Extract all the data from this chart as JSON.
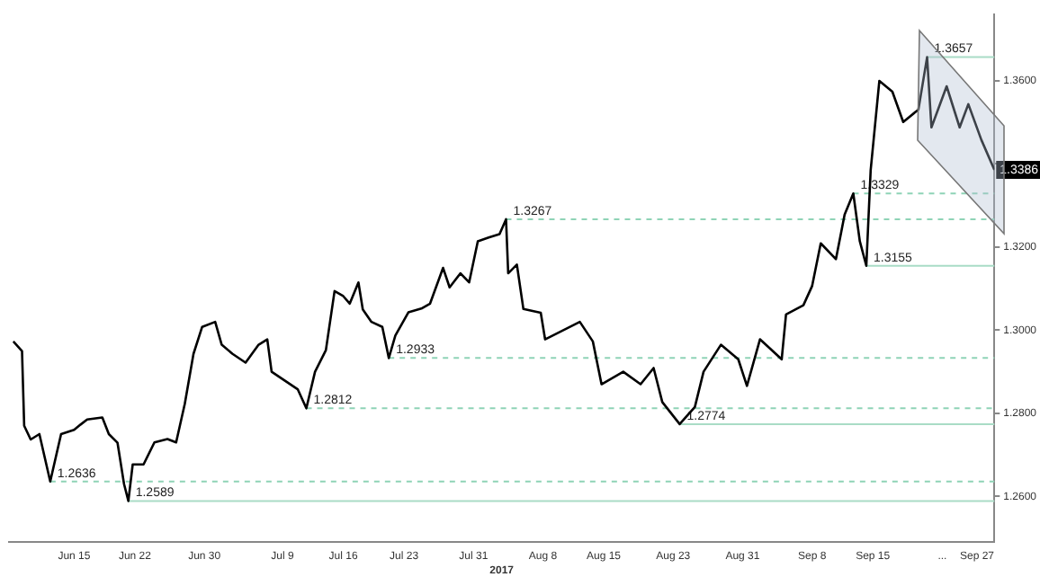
{
  "chart_data": {
    "type": "line",
    "xlabel": "2017",
    "x": [
      "2017-06-08T00:00",
      "2017-06-09T00:00",
      "2017-06-09T06:00",
      "2017-06-10T00:00",
      "2017-06-11T00:00",
      "2017-06-12T06:00",
      "2017-06-13T12:00",
      "2017-06-15T00:00",
      "2017-06-15T18:00",
      "2017-06-16T12:00",
      "2017-06-18T06:00",
      "2017-06-19T00:00",
      "2017-06-20T00:00",
      "2017-06-20T18:00",
      "2017-06-21T06:00",
      "2017-06-21T18:00",
      "2017-06-23T00:00",
      "2017-06-24T06:00",
      "2017-06-25T18:00",
      "2017-06-26T18:00",
      "2017-06-27T18:00",
      "2017-06-28T18:00",
      "2017-06-29T18:00",
      "2017-07-01T06:00",
      "2017-07-02T00:00",
      "2017-07-03T06:00",
      "2017-07-04T18:00",
      "2017-07-06T06:00",
      "2017-07-07T06:00",
      "2017-07-07T18:00",
      "2017-07-09T06:00",
      "2017-07-10T18:00",
      "2017-07-11T18:00",
      "2017-07-12T18:00",
      "2017-07-14T00:00",
      "2017-07-15T00:00",
      "2017-07-16T00:00",
      "2017-07-16T18:00",
      "2017-07-17T18:00",
      "2017-07-18T06:00",
      "2017-07-19T06:00",
      "2017-07-20T12:00",
      "2017-07-21T06:00",
      "2017-07-22T00:00",
      "2017-07-23T12:00",
      "2017-07-25T00:00",
      "2017-07-26T00:00",
      "2017-07-27T12:00",
      "2017-07-28T06:00",
      "2017-07-29T12:00",
      "2017-07-30T12:00",
      "2017-07-31T12:00",
      "2017-08-01T18:00",
      "2017-08-03T00:00",
      "2017-08-03T18:00",
      "2017-08-04T00:00",
      "2017-08-05T00:00",
      "2017-08-05T18:00",
      "2017-08-07T18:00",
      "2017-08-08T06:00",
      "2017-08-10T06:00",
      "2017-08-12T06:00",
      "2017-08-13T18:00",
      "2017-08-14T18:00",
      "2017-08-17T06:00",
      "2017-08-19T06:00",
      "2017-08-20T18:00",
      "2017-08-21T18:00",
      "2017-08-23T18:00",
      "2017-08-25T12:00",
      "2017-08-26T12:00",
      "2017-08-28T12:00",
      "2017-08-30T12:00",
      "2017-08-31T12:00",
      "2017-09-02T00:00",
      "2017-09-04T12:00",
      "2017-09-05T00:00",
      "2017-09-07T00:00",
      "2017-09-08T00:00",
      "2017-09-09T00:00",
      "2017-09-10T18:00",
      "2017-09-11T18:00",
      "2017-09-12T18:00",
      "2017-09-13T12:00",
      "2017-09-14T06:00",
      "2017-09-14T18:00",
      "2017-09-15T18:00",
      "2017-09-17T06:00",
      "2017-09-18T12:00",
      "2017-09-20T06:00",
      "2017-09-21T06:00",
      "2017-09-21T18:00",
      "2017-09-23T12:00",
      "2017-09-25T00:00",
      "2017-09-26T00:00",
      "2017-09-27T12:00",
      "2017-09-29T00:00"
    ],
    "series": [
      {
        "color": "#000000",
        "values": [
          1.2973,
          1.295,
          1.277,
          1.2737,
          1.275,
          1.2636,
          1.275,
          1.276,
          1.2773,
          1.2785,
          1.279,
          1.275,
          1.2729,
          1.263,
          1.2589,
          1.2677,
          1.2677,
          1.273,
          1.2738,
          1.273,
          1.2823,
          1.2943,
          1.3008,
          1.302,
          1.2965,
          1.2943,
          1.2922,
          1.2965,
          1.2978,
          1.29,
          1.2879,
          1.2858,
          1.2812,
          1.29,
          1.2952,
          1.3094,
          1.3082,
          1.3064,
          1.3115,
          1.305,
          1.302,
          1.3008,
          1.2933,
          1.2987,
          1.3043,
          1.3052,
          1.3064,
          1.315,
          1.3103,
          1.3137,
          1.3115,
          1.3214,
          1.3223,
          1.3231,
          1.3267,
          1.3137,
          1.3158,
          1.3051,
          1.3042,
          1.2978,
          1.2999,
          1.302,
          1.2973,
          1.287,
          1.29,
          1.287,
          1.2909,
          1.2827,
          1.2774,
          1.2815,
          1.29,
          1.2965,
          1.293,
          1.2866,
          1.2978,
          1.293,
          1.3038,
          1.306,
          1.3106,
          1.3209,
          1.3171,
          1.3278,
          1.3329,
          1.3214,
          1.3155,
          1.3385,
          1.36,
          1.3574,
          1.3501,
          1.3531,
          1.3657,
          1.3488,
          1.3587,
          1.3488,
          1.3544,
          1.3458,
          1.3386
        ]
      }
    ],
    "xlim": [
      "2017-06-07T12:00",
      "2017-09-29T00:00"
    ],
    "xticks": [
      {
        "value": "2017-06-15",
        "label": "Jun 15"
      },
      {
        "value": "2017-06-22",
        "label": "Jun 22"
      },
      {
        "value": "2017-06-30",
        "label": "Jun 30"
      },
      {
        "value": "2017-07-09",
        "label": "Jul 9"
      },
      {
        "value": "2017-07-16",
        "label": "Jul 16"
      },
      {
        "value": "2017-07-23",
        "label": "Jul 23"
      },
      {
        "value": "2017-07-31",
        "label": "Jul 31"
      },
      {
        "value": "2017-08-08",
        "label": "Aug 8"
      },
      {
        "value": "2017-08-15",
        "label": "Aug 15"
      },
      {
        "value": "2017-08-23",
        "label": "Aug 23"
      },
      {
        "value": "2017-08-31",
        "label": "Aug 31"
      },
      {
        "value": "2017-09-08",
        "label": "Sep 8"
      },
      {
        "value": "2017-09-15",
        "label": "Sep 15"
      },
      {
        "value": "2017-09-23",
        "label": "..."
      },
      {
        "value": "2017-09-27",
        "label": "Sep 27"
      }
    ],
    "ylim": [
      1.249,
      1.376
    ],
    "yticks": [
      {
        "value": 1.26,
        "label": "1.2600"
      },
      {
        "value": 1.28,
        "label": "1.2800"
      },
      {
        "value": 1.3,
        "label": "1.3000"
      },
      {
        "value": 1.32,
        "label": "1.3200"
      },
      {
        "value": 1.34,
        "label": null
      },
      {
        "value": 1.36,
        "label": "1.3600"
      }
    ],
    "ref_lines": [
      {
        "axis": "y",
        "value": 1.2636,
        "label": "1.2636",
        "color": "#8fd3b6",
        "line_style": "dashed"
      },
      {
        "axis": "y",
        "value": 1.2589,
        "label": "1.2589",
        "color": "#a9dcc6",
        "line_style": "solid"
      },
      {
        "axis": "y",
        "value": 1.2812,
        "label": "1.2812",
        "color": "#8fd3b6",
        "line_style": "dashed"
      },
      {
        "axis": "y",
        "value": 1.2933,
        "label": "1.2933",
        "color": "#8fd3b6",
        "line_style": "dashed"
      },
      {
        "axis": "y",
        "value": 1.3267,
        "label": "1.3267",
        "color": "#8fd3b6",
        "line_style": "dashed"
      },
      {
        "axis": "y",
        "value": 1.2774,
        "label": "1.2774",
        "color": "#a9dcc6",
        "line_style": "solid"
      },
      {
        "axis": "y",
        "value": 1.3329,
        "label": "1.3329",
        "color": "#8fd3b6",
        "line_style": "dashed"
      },
      {
        "axis": "y",
        "value": 1.3155,
        "label": "1.3155",
        "color": "#a9dcc6",
        "line_style": "solid"
      },
      {
        "axis": "y",
        "value": 1.3657,
        "label": "1.3657",
        "color": "#a9dcc6",
        "line_style": "solid"
      }
    ],
    "annotations": [
      {
        "text": "1.3386",
        "x": "2017-09-29T00:00",
        "y": 1.3386
      }
    ],
    "grid": false,
    "legend": false,
    "marker": "none",
    "line_style": "solid"
  }
}
